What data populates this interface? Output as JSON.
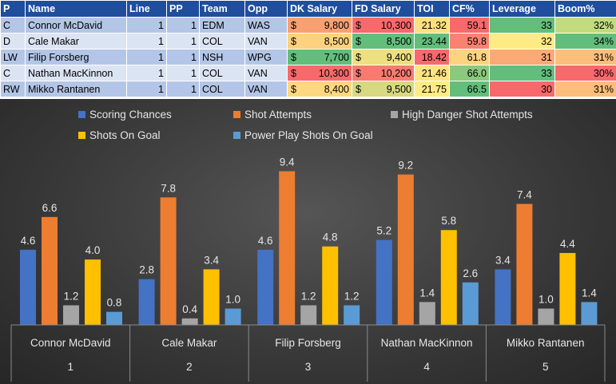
{
  "table": {
    "headers": [
      "P",
      "Name",
      "Line",
      "PP",
      "Team",
      "Opp",
      "DK Salary",
      "FD Salary",
      "TOI",
      "CF%",
      "Leverage",
      "Boom%"
    ],
    "currency_symbol": "$",
    "rows": [
      {
        "P": "C",
        "Name": "Connor McDavid",
        "Line": "1",
        "PP": "1",
        "Team": "EDM",
        "Opp": "WAS",
        "DK": "9,800",
        "FD": "10,300",
        "TOI": "21.32",
        "CF": "59.1",
        "Lev": "33",
        "Boom": "32%"
      },
      {
        "P": "D",
        "Name": "Cale Makar",
        "Line": "1",
        "PP": "1",
        "Team": "COL",
        "Opp": "VAN",
        "DK": "8,500",
        "FD": "8,500",
        "TOI": "23.44",
        "CF": "59.8",
        "Lev": "32",
        "Boom": "34%"
      },
      {
        "P": "LW",
        "Name": "Filip Forsberg",
        "Line": "1",
        "PP": "1",
        "Team": "NSH",
        "Opp": "WPG",
        "DK": "7,700",
        "FD": "9,400",
        "TOI": "18.42",
        "CF": "61.8",
        "Lev": "31",
        "Boom": "31%"
      },
      {
        "P": "C",
        "Name": "Nathan MacKinnon",
        "Line": "1",
        "PP": "1",
        "Team": "COL",
        "Opp": "VAN",
        "DK": "10,300",
        "FD": "10,200",
        "TOI": "21.46",
        "CF": "66.0",
        "Lev": "33",
        "Boom": "30%"
      },
      {
        "P": "RW",
        "Name": "Mikko Rantanen",
        "Line": "1",
        "PP": "1",
        "Team": "COL",
        "Opp": "VAN",
        "DK": "8,400",
        "FD": "9,500",
        "TOI": "21.75",
        "CF": "66.5",
        "Lev": "30",
        "Boom": "31%"
      }
    ],
    "heat_colors": {
      "DK": [
        "#f8a072",
        "#fdd17f",
        "#63be7b",
        "#f8696b",
        "#fed880"
      ],
      "FD": [
        "#f8696b",
        "#63be7b",
        "#eedf80",
        "#f87b6e",
        "#d7d881"
      ],
      "TOI": [
        "#fee07f",
        "#63be7b",
        "#f8696b",
        "#fee582",
        "#ffeb84"
      ],
      "CF": [
        "#f8696b",
        "#fa8270",
        "#fed380",
        "#8bc97d",
        "#63be7b"
      ],
      "Lev": [
        "#63be7b",
        "#ffeb84",
        "#fbaa77",
        "#63be7b",
        "#f8696b"
      ],
      "Boom": [
        "#c2db7f",
        "#63be7b",
        "#fcbe7b",
        "#f8696b",
        "#fcbe7b"
      ]
    }
  },
  "chart_data": {
    "type": "bar",
    "categories": [
      {
        "name": "Connor McDavid",
        "index": "1"
      },
      {
        "name": "Cale Makar",
        "index": "2"
      },
      {
        "name": "Filip Forsberg",
        "index": "3"
      },
      {
        "name": "Nathan MacKinnon",
        "index": "4"
      },
      {
        "name": "Mikko Rantanen",
        "index": "5"
      }
    ],
    "series": [
      {
        "name": "Scoring Chances",
        "color": "#4472c4",
        "values": [
          4.6,
          2.8,
          4.6,
          5.2,
          3.4
        ]
      },
      {
        "name": "Shot Attempts",
        "color": "#ed7d31",
        "values": [
          6.6,
          7.8,
          9.4,
          9.2,
          7.4
        ]
      },
      {
        "name": "High Danger Shot Attempts",
        "color": "#a5a5a5",
        "values": [
          1.2,
          0.4,
          1.2,
          1.4,
          1.0
        ]
      },
      {
        "name": "Shots On Goal",
        "color": "#ffc000",
        "values": [
          4.0,
          3.4,
          4.8,
          5.8,
          4.4
        ]
      },
      {
        "name": "Power Play Shots On Goal",
        "color": "#5b9bd5",
        "values": [
          0.8,
          1.0,
          1.2,
          2.6,
          1.4
        ]
      }
    ],
    "value_format": "0.0",
    "ylim": [
      0,
      10.4
    ],
    "legend": "top",
    "grid": false,
    "xlabel": "",
    "ylabel": "",
    "title": ""
  }
}
